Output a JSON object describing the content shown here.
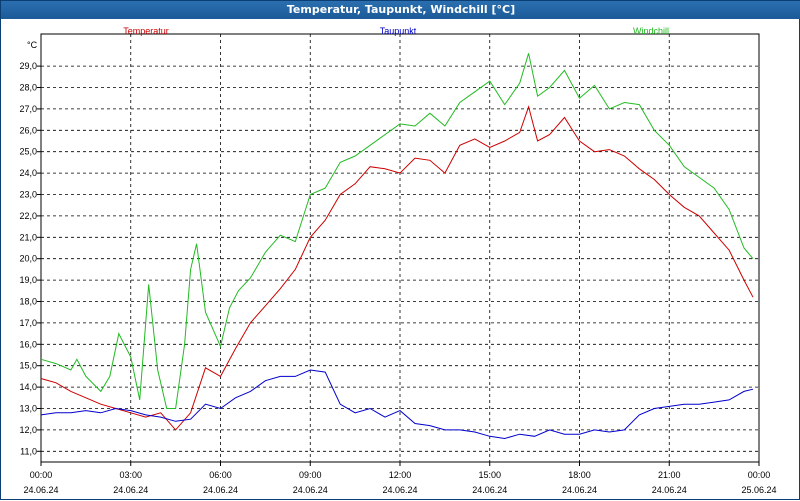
{
  "window": {
    "title": "Temperatur, Taupunkt, Windchill [°C]"
  },
  "colors": {
    "temperatur": "#cc0000",
    "taupunkt": "#0000cc",
    "windchill": "#22bb22",
    "titlebar": "#1c5a98"
  },
  "chart_data": {
    "type": "line",
    "title": "Temperatur, Taupunkt, Windchill [°C]",
    "ylabel": "°C",
    "xlabel": "",
    "ylim": [
      10.5,
      30.5
    ],
    "y_ticks": [
      "11,0",
      "12,0",
      "13,0",
      "14,0",
      "15,0",
      "16,0",
      "17,0",
      "18,0",
      "19,0",
      "20,0",
      "21,0",
      "22,0",
      "23,0",
      "24,0",
      "25,0",
      "26,0",
      "27,0",
      "28,0",
      "29,0"
    ],
    "x_ticks": [
      {
        "time": "00:00",
        "date": "24.06.24"
      },
      {
        "time": "03:00",
        "date": "24.06.24"
      },
      {
        "time": "06:00",
        "date": "24.06.24"
      },
      {
        "time": "09:00",
        "date": "24.06.24"
      },
      {
        "time": "12:00",
        "date": "24.06.24"
      },
      {
        "time": "15:00",
        "date": "24.06.24"
      },
      {
        "time": "18:00",
        "date": "24.06.24"
      },
      {
        "time": "21:00",
        "date": "24.06.24"
      },
      {
        "time": "00:00",
        "date": "25.06.24"
      }
    ],
    "grid": true,
    "series": [
      {
        "name": "Temperatur",
        "x": [
          0,
          0.5,
          1,
          1.5,
          2,
          2.5,
          3,
          3.5,
          4,
          4.5,
          5,
          5.5,
          6,
          6.5,
          7,
          7.5,
          8,
          8.5,
          9,
          9.5,
          10,
          10.5,
          11,
          11.5,
          12,
          12.5,
          13,
          13.5,
          14,
          14.5,
          15,
          15.5,
          16,
          16.3,
          16.6,
          17,
          17.5,
          18,
          18.5,
          19,
          19.5,
          20,
          20.5,
          21,
          21.5,
          22,
          22.5,
          23,
          23.5,
          23.8
        ],
        "values": [
          14.4,
          14.2,
          13.8,
          13.5,
          13.2,
          13.0,
          12.8,
          12.6,
          12.8,
          12.0,
          12.8,
          14.9,
          14.5,
          15.8,
          17.0,
          17.8,
          18.6,
          19.5,
          21.0,
          21.8,
          23.0,
          23.5,
          24.3,
          24.2,
          24.0,
          24.7,
          24.6,
          24.0,
          25.3,
          25.6,
          25.2,
          25.5,
          25.9,
          27.1,
          25.5,
          25.8,
          26.6,
          25.5,
          25.0,
          25.1,
          24.8,
          24.2,
          23.7,
          23.0,
          22.4,
          22.0,
          21.2,
          20.4,
          19.0,
          18.2
        ]
      },
      {
        "name": "Taupunkt",
        "x": [
          0,
          0.5,
          1,
          1.5,
          2,
          2.5,
          3,
          3.5,
          4,
          4.5,
          5,
          5.5,
          6,
          6.5,
          7,
          7.5,
          8,
          8.5,
          9,
          9.5,
          10,
          10.5,
          11,
          11.5,
          12,
          12.5,
          13,
          13.5,
          14,
          14.5,
          15,
          15.5,
          16,
          16.5,
          17,
          17.5,
          18,
          18.5,
          19,
          19.5,
          20,
          20.5,
          21,
          21.5,
          22,
          22.5,
          23,
          23.5,
          23.8
        ],
        "values": [
          12.7,
          12.8,
          12.8,
          12.9,
          12.8,
          13.0,
          12.9,
          12.7,
          12.6,
          12.4,
          12.5,
          13.2,
          13.0,
          13.5,
          13.8,
          14.3,
          14.5,
          14.5,
          14.8,
          14.7,
          13.2,
          12.8,
          13.0,
          12.6,
          12.9,
          12.3,
          12.2,
          12.0,
          12.0,
          11.9,
          11.7,
          11.6,
          11.8,
          11.7,
          12.0,
          11.8,
          11.8,
          12.0,
          11.9,
          12.0,
          12.7,
          13.0,
          13.1,
          13.2,
          13.2,
          13.3,
          13.4,
          13.8,
          13.9
        ]
      },
      {
        "name": "Windchill",
        "x": [
          0,
          0.5,
          1,
          1.2,
          1.5,
          2,
          2.3,
          2.6,
          3,
          3.3,
          3.6,
          3.9,
          4.2,
          4.5,
          4.8,
          5,
          5.2,
          5.5,
          6,
          6.3,
          6.6,
          7,
          7.5,
          8,
          8.5,
          9,
          9.5,
          10,
          10.5,
          11,
          11.5,
          12,
          12.5,
          13,
          13.5,
          14,
          14.5,
          15,
          15.5,
          16,
          16.3,
          16.6,
          17,
          17.5,
          18,
          18.5,
          19,
          19.5,
          20,
          20.5,
          21,
          21.5,
          22,
          22.5,
          23,
          23.5,
          23.8
        ],
        "values": [
          15.3,
          15.1,
          14.8,
          15.3,
          14.5,
          13.8,
          14.5,
          16.5,
          15.4,
          13.4,
          18.8,
          14.8,
          13.0,
          13.0,
          16.0,
          19.5,
          20.7,
          17.5,
          15.9,
          17.7,
          18.5,
          19.1,
          20.3,
          21.1,
          20.8,
          23.0,
          23.3,
          24.5,
          24.8,
          25.3,
          25.8,
          26.3,
          26.2,
          26.8,
          26.2,
          27.3,
          27.8,
          28.3,
          27.2,
          28.2,
          29.6,
          27.6,
          28.0,
          28.8,
          27.5,
          28.1,
          27.0,
          27.3,
          27.2,
          26.0,
          25.3,
          24.3,
          23.8,
          23.3,
          22.3,
          20.5,
          20.0
        ]
      }
    ]
  }
}
